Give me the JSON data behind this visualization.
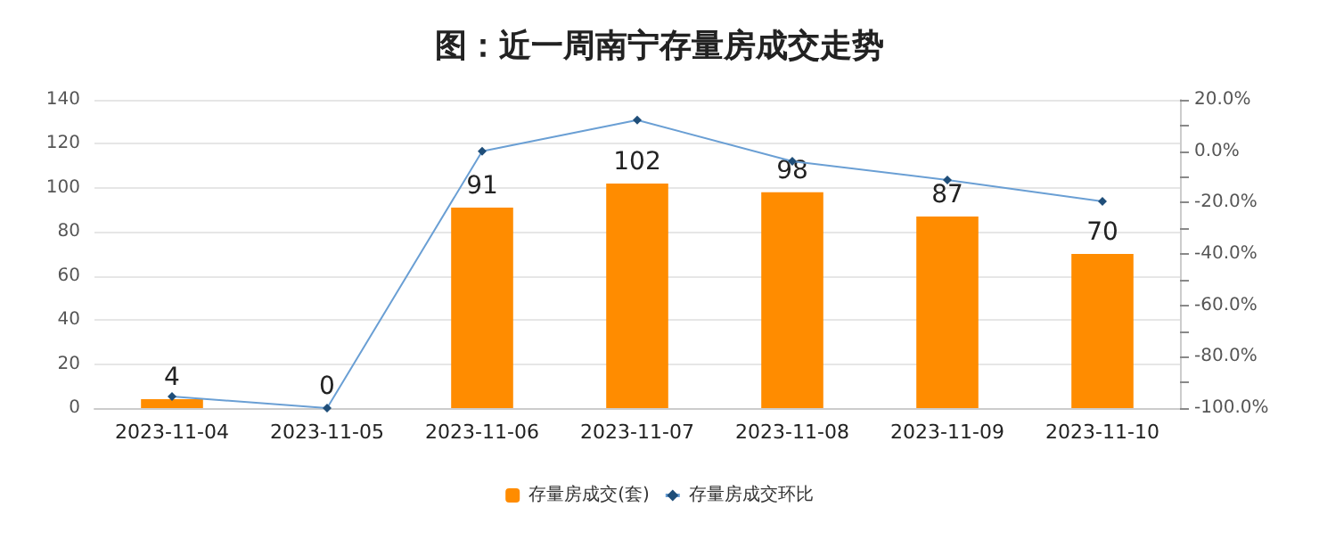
{
  "chart_data": {
    "type": "bar",
    "title": "图：近一周南宁存量房成交走势",
    "categories": [
      "2023-11-04",
      "2023-11-05",
      "2023-11-06",
      "2023-11-07",
      "2023-11-08",
      "2023-11-09",
      "2023-11-10"
    ],
    "series": [
      {
        "name": "存量房成交(套)",
        "color": "#ff8c00",
        "values": [
          4,
          0,
          91,
          102,
          98,
          87,
          70
        ],
        "data_labels": true
      },
      {
        "name": "存量房成交环比",
        "type": "line",
        "axis": "y2",
        "color": "#6a9fd4",
        "marker": "diamond",
        "values": [
          -95.5,
          -100,
          0,
          12.1,
          -3.9,
          -11.2,
          -19.5
        ]
      }
    ],
    "ylim": [
      0,
      140
    ],
    "yticks": [
      0,
      20,
      40,
      60,
      80,
      100,
      120,
      140
    ],
    "y2lim": [
      -100,
      20
    ],
    "y2ticks": [
      {
        "value": -100,
        "label": "-100.0%"
      },
      {
        "value": -90,
        "label": null
      },
      {
        "value": -80,
        "label": "-80.0%"
      },
      {
        "value": -70,
        "label": null
      },
      {
        "value": -60,
        "label": "-60.0%"
      },
      {
        "value": -50,
        "label": null
      },
      {
        "value": -40,
        "label": "-40.0%"
      },
      {
        "value": -30,
        "label": null
      },
      {
        "value": -20,
        "label": "-20.0%"
      },
      {
        "value": -10,
        "label": null
      },
      {
        "value": 0,
        "label": "0.0%"
      },
      {
        "value": 10,
        "label": null
      },
      {
        "value": 20,
        "label": "20.0%"
      }
    ],
    "grid": "y",
    "legend": "bottom"
  }
}
